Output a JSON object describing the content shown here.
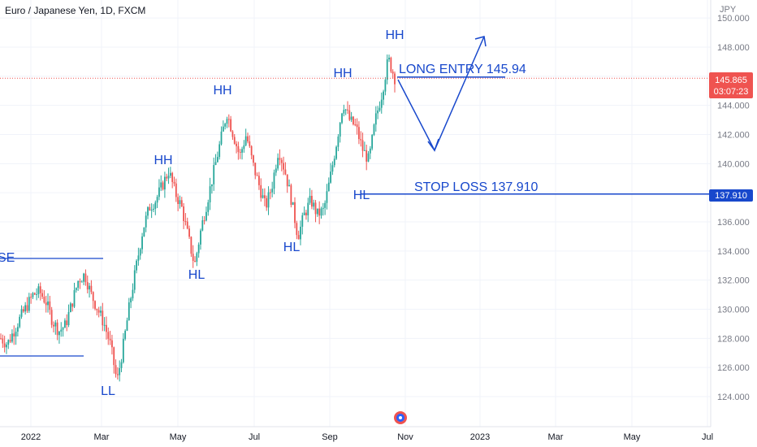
{
  "chart_data": {
    "type": "candlestick",
    "title": "Euro / Japanese Yen, 1D, FXCM",
    "currency": "JPY",
    "ylim": [
      122.5,
      151
    ],
    "y_ticks": [
      {
        "value": 124,
        "label": "124.000"
      },
      {
        "value": 126,
        "label": "126.000"
      },
      {
        "value": 128,
        "label": "128.000"
      },
      {
        "value": 130,
        "label": "130.000"
      },
      {
        "value": 132,
        "label": "132.000"
      },
      {
        "value": 134,
        "label": "134.000"
      },
      {
        "value": 136,
        "label": "136.000"
      },
      {
        "value": 138,
        "label": "138.000"
      },
      {
        "value": 140,
        "label": "140.000"
      },
      {
        "value": 142,
        "label": "142.000"
      },
      {
        "value": 144,
        "label": "144.000"
      },
      {
        "value": 146,
        "label": "146.000"
      },
      {
        "value": 148,
        "label": "148.000"
      },
      {
        "value": 150,
        "label": "150.000"
      }
    ],
    "x_ticks": [
      "2022",
      "Mar",
      "May",
      "Jul",
      "Sep",
      "Nov",
      "2023",
      "Mar",
      "May",
      "Jul"
    ],
    "grid": true,
    "colors": {
      "up": "#26a69a",
      "down": "#ef5350",
      "annotation": "#1848cc",
      "price_tag": "#ef5350"
    },
    "current_price": {
      "value": 145.865,
      "label": "145.865",
      "countdown": "03:07:23"
    },
    "stop_loss_tag": {
      "value": 137.91,
      "label": "137.910"
    },
    "annotations": {
      "long_entry": "LONG ENTRY 145.94",
      "stop_loss": "STOP LOSS 137.910",
      "partial_left": "SE",
      "swing_labels": [
        "HH",
        "HH",
        "HH",
        "HH",
        "HL",
        "HL",
        "HL",
        "LL"
      ]
    },
    "swing_points": [
      {
        "label": "LL",
        "x": "Mar",
        "price": 125.0
      },
      {
        "label": "HH",
        "x": "Apr",
        "price": 140.0
      },
      {
        "label": "HL",
        "x": "May",
        "price": 133.0
      },
      {
        "label": "HH",
        "x": "Jun",
        "price": 144.2
      },
      {
        "label": "HL",
        "x": "Aug",
        "price": 133.5
      },
      {
        "label": "HH",
        "x": "Sep",
        "price": 145.6
      },
      {
        "label": "HL",
        "x": "Sep",
        "price": 137.9
      },
      {
        "label": "HH",
        "x": "Oct",
        "price": 148.4
      }
    ],
    "series_approx_closes": [
      128.0,
      127.6,
      128.5,
      129.4,
      130.2,
      131.0,
      131.2,
      130.5,
      129.2,
      128.5,
      128.9,
      130.4,
      132.0,
      132.4,
      131.0,
      130.0,
      129.0,
      127.5,
      125.0,
      127.6,
      130.5,
      133.0,
      135.5,
      137.0,
      137.5,
      138.5,
      139.5,
      138.0,
      137.0,
      135.0,
      133.0,
      135.5,
      137.5,
      139.5,
      141.5,
      143.5,
      142.0,
      140.5,
      142.0,
      140.0,
      138.5,
      137.0,
      138.5,
      141.0,
      139.5,
      137.5,
      135.0,
      136.5,
      137.5,
      136.5,
      136.8,
      139.0,
      141.5,
      144.2,
      143.0,
      142.5,
      141.0,
      140.2,
      143.0,
      144.8,
      147.2,
      145.9
    ]
  }
}
